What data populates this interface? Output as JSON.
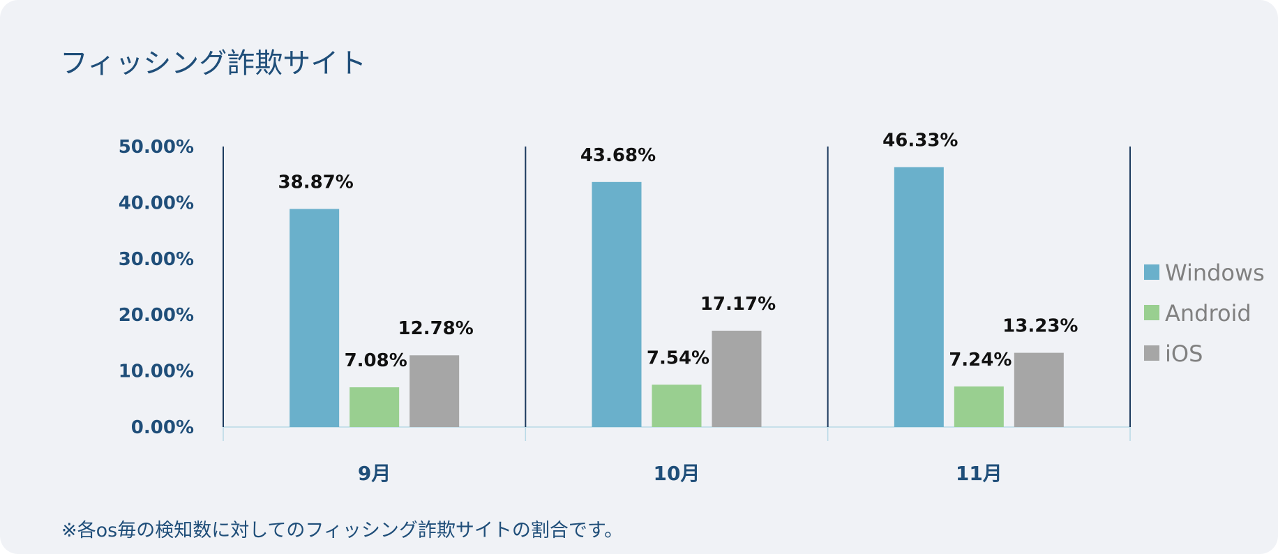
{
  "colors": {
    "background": "#f0f2f6",
    "title": "#1f4e79",
    "axis_text": "#1f4e79",
    "divider": "#1c3a5e",
    "baseline": "#b9d9e6",
    "data_label": "#111111",
    "legend_text": "#808080"
  },
  "chart_data": {
    "type": "bar",
    "title": "フィッシング詐欺サイト",
    "categories": [
      "9月",
      "10月",
      "11月"
    ],
    "series": [
      {
        "name": "Windows",
        "color": "#6ab0cb",
        "values": [
          38.87,
          43.68,
          46.33
        ],
        "labels": [
          "38.87%",
          "43.68%",
          "46.33%"
        ]
      },
      {
        "name": "Android",
        "color": "#99cf90",
        "values": [
          7.08,
          7.54,
          7.24
        ],
        "labels": [
          "7.08%",
          "7.54%",
          "7.24%"
        ]
      },
      {
        "name": "iOS",
        "color": "#a6a6a6",
        "values": [
          12.78,
          17.17,
          13.23
        ],
        "labels": [
          "12.78%",
          "17.17%",
          "13.23%"
        ]
      }
    ],
    "ylim": [
      0,
      50
    ],
    "yticks": [
      0,
      10,
      20,
      30,
      40,
      50
    ],
    "ytick_labels": [
      "0.00%",
      "10.00%",
      "20.00%",
      "30.00%",
      "40.00%",
      "50.00%"
    ],
    "xlabel": "",
    "ylabel": "",
    "grid": false,
    "legend_position": "right"
  },
  "footnote": "※各os毎の検知数に対してのフィッシング詐欺サイトの割合です。"
}
